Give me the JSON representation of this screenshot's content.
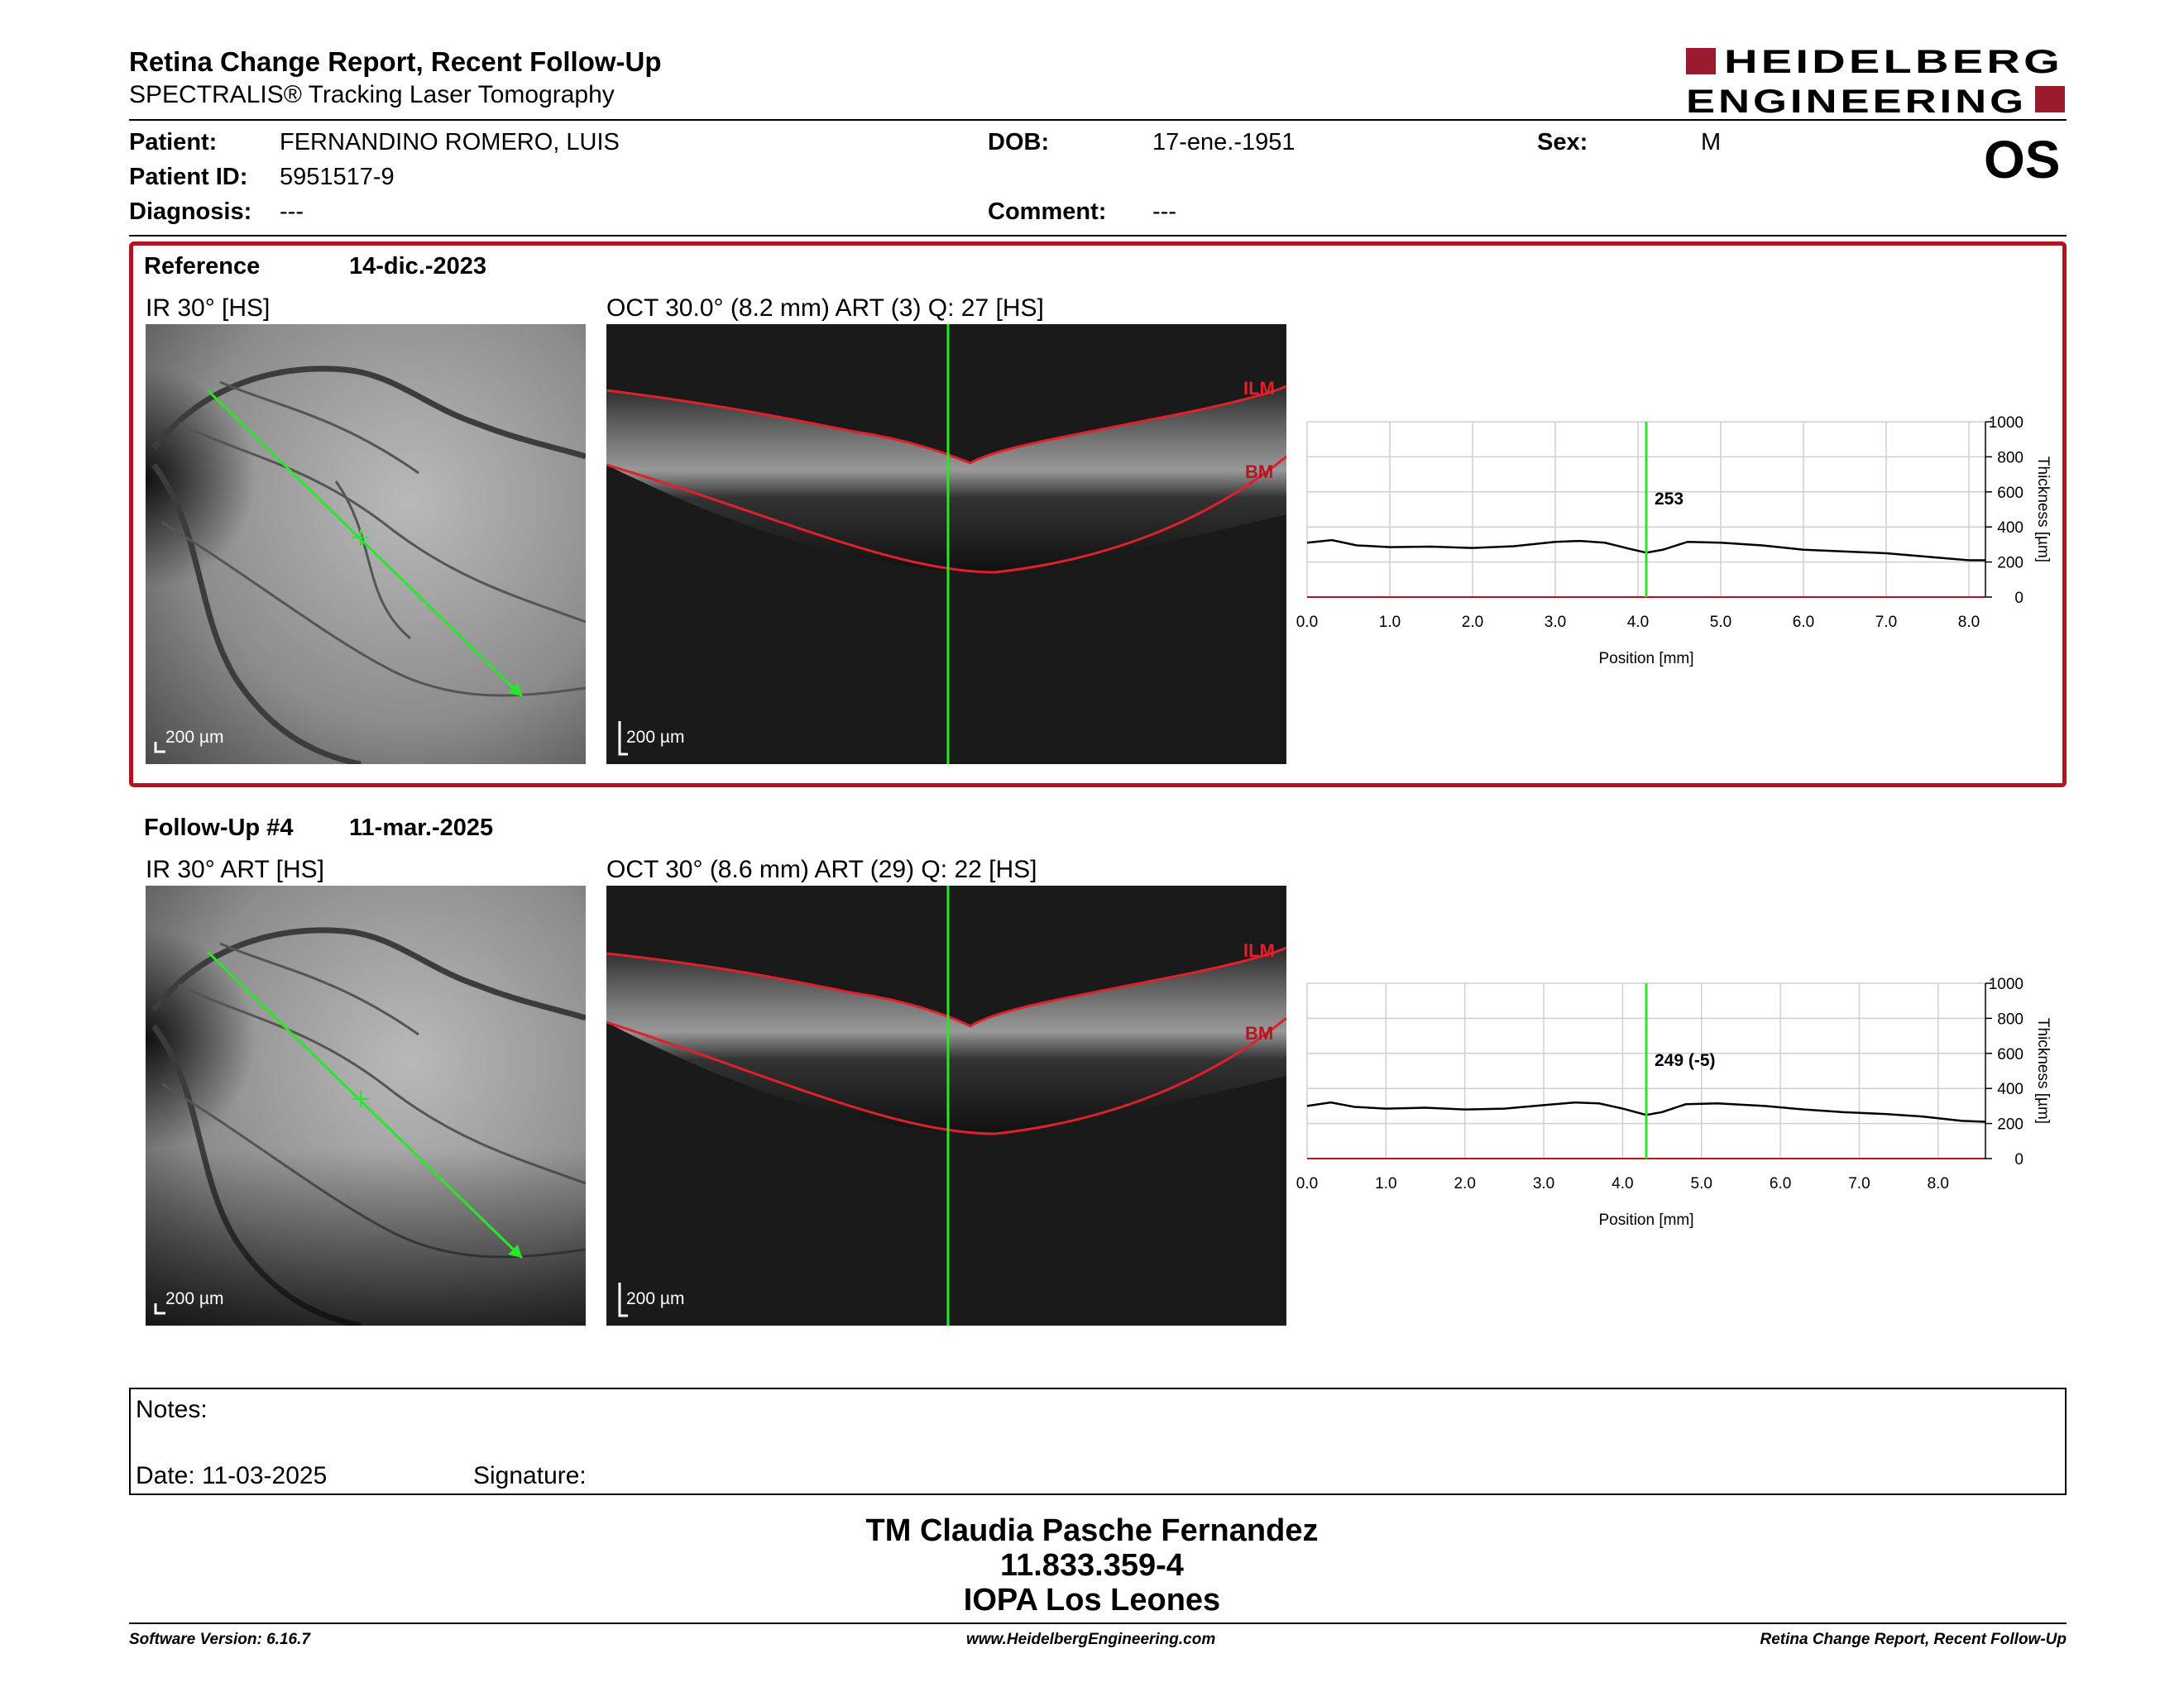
{
  "header": {
    "title": "Retina Change Report, Recent Follow-Up",
    "subtitle": "SPECTRALIS® Tracking Laser Tomography",
    "logo_line1": "HEIDELBERG",
    "logo_line2": "ENGINEERING",
    "brand_color": "#9b1b2e"
  },
  "patient": {
    "patient_label": "Patient:",
    "patient_value": "FERNANDINO ROMERO, LUIS",
    "id_label": "Patient ID:",
    "id_value": "5951517-9",
    "diagnosis_label": "Diagnosis:",
    "diagnosis_value": "---",
    "dob_label": "DOB:",
    "dob_value": "17-ene.-1951",
    "comment_label": "Comment:",
    "comment_value": "---",
    "sex_label": "Sex:",
    "sex_value": "M",
    "eye": "OS"
  },
  "reference": {
    "label": "Reference",
    "date": "14-dic.-2023",
    "ir_caption": "IR 30° [HS]",
    "oct_caption": "OCT 30.0° (8.2 mm) ART (3) Q: 27 [HS]",
    "scale": "200 µm",
    "ilm": "ILM",
    "bm": "BM",
    "frame_color": "#b3121f"
  },
  "followup": {
    "label": "Follow-Up #4",
    "date": "11-mar.-2025",
    "ir_caption": "IR 30° ART [HS]",
    "oct_caption": "OCT 30° (8.6 mm) ART (29) Q: 22 [HS]",
    "scale": "200 µm",
    "ilm": "ILM",
    "bm": "BM"
  },
  "chart_data": [
    {
      "type": "line",
      "title": "",
      "xlabel": "Position [mm]",
      "ylabel": "Thickness [µm]",
      "xlim": [
        0,
        8.2
      ],
      "ylim": [
        0,
        1000
      ],
      "x_ticks": [
        "0.0",
        "1.0",
        "2.0",
        "3.0",
        "4.0",
        "5.0",
        "6.0",
        "7.0",
        "8.0"
      ],
      "y_ticks": [
        "0",
        "200",
        "400",
        "600",
        "800",
        "1000"
      ],
      "grid": true,
      "marker_x": 4.1,
      "marker_label": "253",
      "x": [
        0.0,
        0.3,
        0.6,
        1.0,
        1.5,
        2.0,
        2.5,
        3.0,
        3.3,
        3.6,
        3.9,
        4.1,
        4.3,
        4.6,
        5.0,
        5.5,
        6.0,
        6.5,
        7.0,
        7.5,
        8.0,
        8.2
      ],
      "y": [
        310,
        325,
        295,
        285,
        288,
        280,
        290,
        315,
        320,
        310,
        275,
        253,
        270,
        315,
        310,
        295,
        270,
        260,
        250,
        230,
        210,
        210
      ]
    },
    {
      "type": "line",
      "title": "",
      "xlabel": "Position [mm]",
      "ylabel": "Thickness [µm]",
      "xlim": [
        0,
        8.6
      ],
      "ylim": [
        0,
        1000
      ],
      "x_ticks": [
        "0.0",
        "1.0",
        "2.0",
        "3.0",
        "4.0",
        "5.0",
        "6.0",
        "7.0",
        "8.0"
      ],
      "y_ticks": [
        "0",
        "200",
        "400",
        "600",
        "800",
        "1000"
      ],
      "grid": true,
      "marker_x": 4.3,
      "marker_label": "249 (-5)",
      "x": [
        0.0,
        0.3,
        0.6,
        1.0,
        1.5,
        2.0,
        2.5,
        3.0,
        3.4,
        3.7,
        4.0,
        4.3,
        4.5,
        4.8,
        5.2,
        5.8,
        6.3,
        6.8,
        7.3,
        7.8,
        8.3,
        8.6
      ],
      "y": [
        300,
        320,
        295,
        285,
        290,
        280,
        285,
        305,
        320,
        315,
        285,
        249,
        265,
        310,
        315,
        300,
        280,
        265,
        255,
        240,
        215,
        210
      ]
    }
  ],
  "notes": {
    "notes_label": "Notes:",
    "date_label": "Date: 11-03-2025",
    "signature_label": "Signature:"
  },
  "signature": {
    "name": "TM Claudia Pasche Fernandez",
    "id": "11.833.359-4",
    "place": "IOPA Los Leones"
  },
  "footer": {
    "software": "Software Version: 6.16.7",
    "website": "www.HeidelbergEngineering.com",
    "report": "Retina Change Report, Recent Follow-Up"
  }
}
